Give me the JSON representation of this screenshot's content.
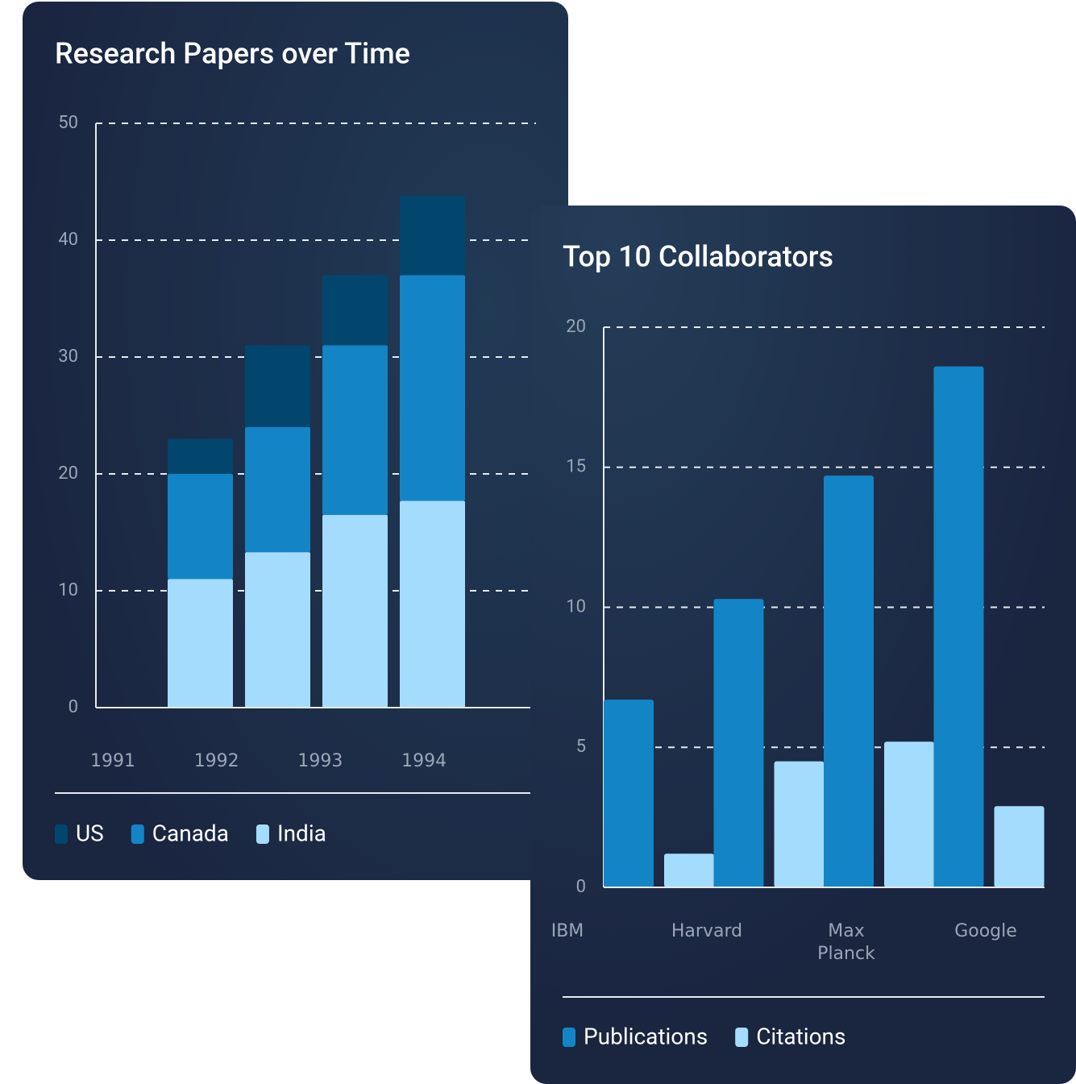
{
  "chart_data": [
    {
      "type": "bar",
      "stacked": true,
      "title": "Research Papers over Time",
      "categories": [
        "1991",
        "1992",
        "1993",
        "1994"
      ],
      "series": [
        {
          "name": "US",
          "color": "#02466e",
          "values": [
            3,
            7,
            6,
            6.8
          ]
        },
        {
          "name": "Canada",
          "color": "#1385c6",
          "values": [
            9,
            10.7,
            14.5,
            19.3
          ]
        },
        {
          "name": "India",
          "color": "#a4dcfd",
          "values": [
            11,
            13.3,
            16.5,
            17.7
          ]
        }
      ],
      "ylim": [
        0,
        50
      ],
      "yticks": [
        0,
        10,
        20,
        30,
        40,
        50
      ],
      "grid": true
    },
    {
      "type": "bar",
      "stacked": false,
      "title": "Top 10 Collaborators",
      "categories": [
        "IBM",
        "Harvard",
        "Max Planck",
        "Google"
      ],
      "series": [
        {
          "name": "Publications",
          "color": "#1385c6",
          "values": [
            6.7,
            10.3,
            14.7,
            18.6
          ]
        },
        {
          "name": "Citations",
          "color": "#a4dcfd",
          "values": [
            1.2,
            4.5,
            5.2,
            2.9
          ]
        }
      ],
      "ylim": [
        0,
        20
      ],
      "yticks": [
        0,
        5,
        10,
        15,
        20
      ],
      "grid": true
    }
  ]
}
